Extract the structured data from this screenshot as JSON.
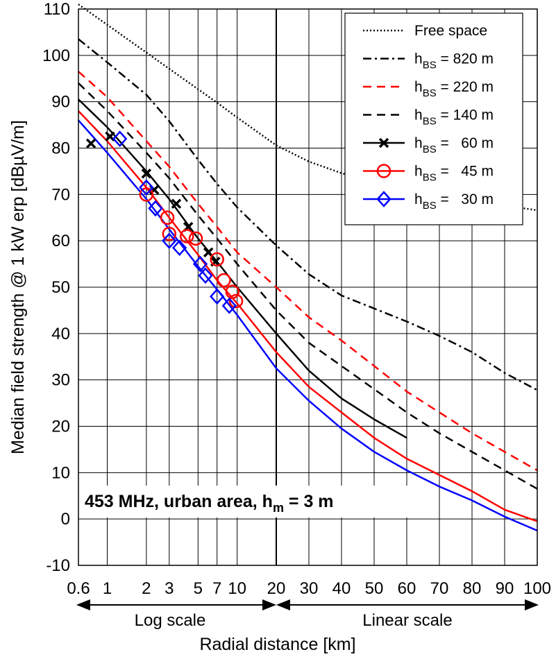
{
  "chart_data": {
    "type": "line",
    "xlabel": "Radial distance [km]",
    "ylabel": "Median field strength @ 1 kW erp [dBµV/m]",
    "xscale_note": [
      "Log scale",
      "Linear scale"
    ],
    "xscale": "log from 0.6 to 20 km, linear from 20 to 100 km",
    "x_ticks": [
      0.6,
      1,
      2,
      3,
      5,
      7,
      10,
      20,
      30,
      40,
      50,
      60,
      70,
      80,
      90,
      100
    ],
    "x_tick_labels": [
      "0.6",
      "1",
      "2",
      "3",
      "5",
      "7",
      "10",
      "20",
      "30",
      "40",
      "50",
      "60",
      "70",
      "80",
      "90",
      "100"
    ],
    "xlim": [
      0.6,
      100
    ],
    "y_ticks": [
      -10,
      0,
      10,
      20,
      30,
      40,
      50,
      60,
      70,
      80,
      90,
      100,
      110
    ],
    "y_tick_labels": [
      "-10",
      "0",
      "10",
      "20",
      "30",
      "40",
      "50",
      "60",
      "70",
      "80",
      "90",
      "100",
      "110"
    ],
    "ylim": [
      -10,
      110
    ],
    "grid": true,
    "legend_position": "top-right",
    "annotation": {
      "main": "453 MHz, urban area, h",
      "sub": "m",
      "tail": " = 3 m"
    },
    "series": [
      {
        "name": "Free space",
        "legend_main": "Free space",
        "legend_sub": "",
        "legend_tail": "",
        "color": "#000000",
        "dash": "dotted",
        "marker": "none",
        "x": [
          0.6,
          1,
          2,
          3,
          5,
          7,
          10,
          20,
          30,
          40,
          50,
          60,
          70,
          80,
          90,
          100
        ],
        "y": [
          111.0,
          106.6,
          100.6,
          97.1,
          92.7,
          89.8,
          86.6,
          80.6,
          77.1,
          74.6,
          72.7,
          71.1,
          69.8,
          68.6,
          67.6,
          66.6
        ]
      },
      {
        "name": "hBS = 820 m",
        "legend_main": "h",
        "legend_sub": "BS",
        "legend_tail": " = 820 m",
        "color": "#000000",
        "dash": "dashdot",
        "marker": "none",
        "x": [
          0.6,
          1,
          2,
          3,
          5,
          7,
          10,
          20,
          30,
          40,
          50,
          60,
          70,
          80,
          90,
          100
        ],
        "y": [
          103.5,
          98.5,
          91.5,
          85.8,
          77.5,
          72.3,
          67.2,
          59.0,
          52.8,
          48.2,
          45.4,
          42.6,
          39.5,
          36.0,
          31.5,
          27.8
        ]
      },
      {
        "name": "hBS = 220 m",
        "legend_main": "h",
        "legend_sub": "BS",
        "legend_tail": " = 220 m",
        "color": "#ff0000",
        "dash": "dashed",
        "marker": "none",
        "x": [
          0.6,
          1,
          2,
          3,
          5,
          7,
          10,
          20,
          30,
          40,
          50,
          60,
          70,
          80,
          90,
          100
        ],
        "y": [
          96.5,
          91.0,
          81.5,
          76.0,
          68.0,
          63.0,
          57.5,
          50.0,
          43.5,
          38.5,
          33.0,
          27.5,
          23.0,
          18.5,
          14.5,
          10.5
        ]
      },
      {
        "name": "hBS = 140 m",
        "legend_main": "h",
        "legend_sub": "BS",
        "legend_tail": " = 140 m",
        "color": "#000000",
        "dash": "dashed",
        "marker": "none",
        "x": [
          0.6,
          1,
          2,
          3,
          5,
          7,
          10,
          20,
          30,
          40,
          50,
          60,
          70,
          80,
          90,
          100
        ],
        "y": [
          94.0,
          88.0,
          79.0,
          73.5,
          65.5,
          60.5,
          55.0,
          45.0,
          38.0,
          33.0,
          28.0,
          23.0,
          18.5,
          14.5,
          10.5,
          6.5
        ]
      },
      {
        "name": "hBS = 60 m",
        "legend_main": "h",
        "legend_sub": "BS",
        "legend_tail": " =   60 m",
        "color": "#000000",
        "dash": "solid",
        "marker": "x",
        "x": [
          0.6,
          1,
          2,
          3,
          5,
          7,
          10,
          20,
          30,
          40,
          50,
          60
        ],
        "y": [
          90.5,
          84.5,
          75.0,
          69.0,
          60.5,
          55.5,
          50.0,
          40.0,
          32.0,
          26.0,
          21.5,
          17.5
        ],
        "points": {
          "x": [
            0.75,
            1.05,
            2.0,
            2.3,
            3.4,
            4.2,
            6.0,
            6.8
          ],
          "y": [
            81,
            82.5,
            74.5,
            71,
            68,
            63,
            57.5,
            55.5
          ]
        }
      },
      {
        "name": "hBS = 45 m",
        "legend_main": "h",
        "legend_sub": "BS",
        "legend_tail": " =   45 m",
        "color": "#ff0000",
        "dash": "solid",
        "marker": "circle",
        "x": [
          0.6,
          1,
          2,
          3,
          5,
          7,
          10,
          20,
          30,
          40,
          50,
          60,
          70,
          80,
          90,
          100
        ],
        "y": [
          88.0,
          81.5,
          71.5,
          65.0,
          57.0,
          51.5,
          46.5,
          36.0,
          28.5,
          23.0,
          17.5,
          13.0,
          9.5,
          6.0,
          2.0,
          -0.5
        ],
        "points": {
          "x": [
            2.0,
            2.9,
            3.0,
            4.1,
            4.8,
            7.0,
            7.9,
            9.2,
            9.8
          ],
          "y": [
            70,
            65,
            61.5,
            61,
            60.5,
            56,
            51.5,
            49,
            47
          ]
        }
      },
      {
        "name": "hBS = 30 m",
        "legend_main": "h",
        "legend_sub": "BS",
        "legend_tail": " =   30 m",
        "color": "#0000ff",
        "dash": "solid",
        "marker": "diamond",
        "x": [
          0.6,
          1,
          2,
          3,
          5,
          7,
          10,
          20,
          30,
          40,
          50,
          60,
          70,
          80,
          90,
          100
        ],
        "y": [
          86.0,
          79.0,
          69.0,
          62.5,
          54.5,
          49.5,
          44.0,
          32.5,
          25.5,
          19.5,
          14.5,
          10.5,
          7.0,
          4.0,
          0.5,
          -2.5
        ],
        "points": {
          "x": [
            1.25,
            2.0,
            2.35,
            3.0,
            3.6,
            5.2,
            5.7,
            7.0,
            8.7
          ],
          "y": [
            82,
            71.5,
            67,
            60,
            58.5,
            55,
            52.5,
            48,
            46
          ]
        }
      }
    ]
  }
}
